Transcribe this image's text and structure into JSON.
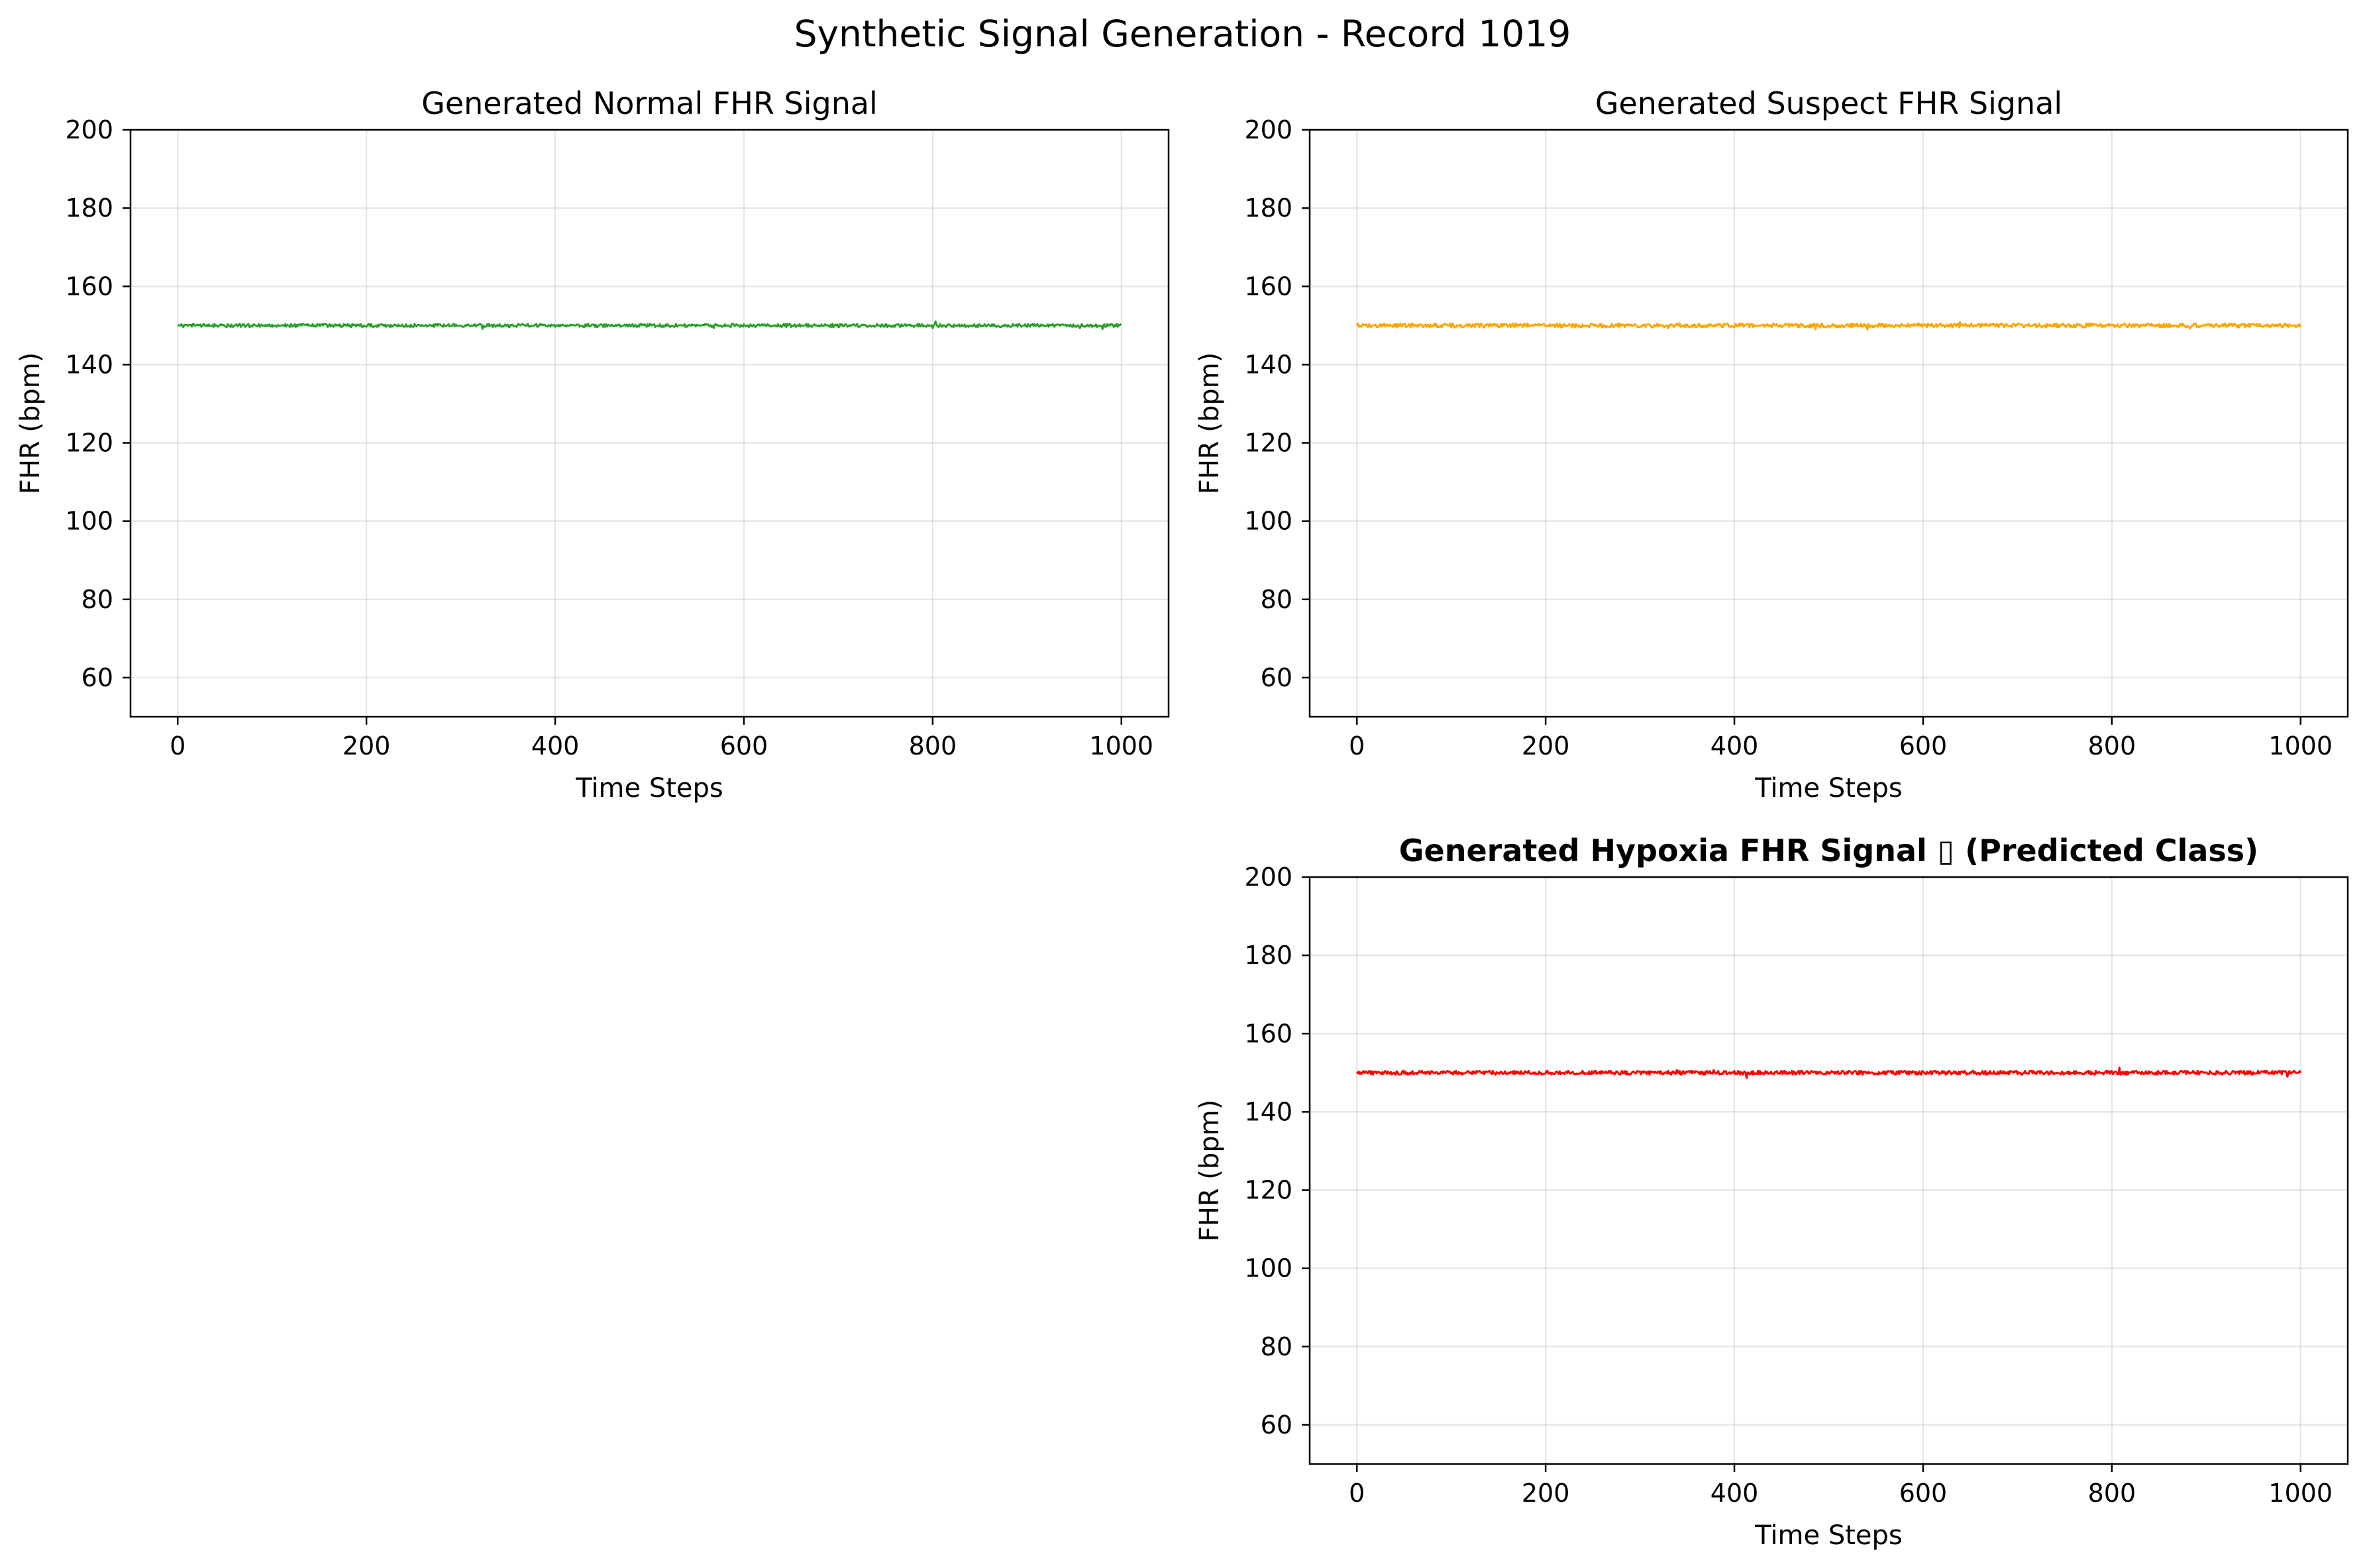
{
  "figure": {
    "suptitle": "Synthetic Signal Generation - Record 1019"
  },
  "chart_data": [
    {
      "type": "line",
      "title": "Generated Normal FHR Signal",
      "title_bold": false,
      "xlabel": "Time Steps",
      "ylabel": "FHR (bpm)",
      "xlim": [
        -50,
        1050
      ],
      "ylim": [
        50,
        200
      ],
      "xticks": [
        0,
        200,
        400,
        600,
        800,
        1000
      ],
      "yticks": [
        60,
        80,
        100,
        120,
        140,
        160,
        180,
        200
      ],
      "grid": true,
      "series": [
        {
          "color": "#2ca02c",
          "x_range": [
            0,
            1000
          ],
          "baseline": 150.0,
          "noise_amplitude": 0.4
        }
      ]
    },
    {
      "type": "line",
      "title": "Generated Suspect FHR Signal",
      "title_bold": false,
      "xlabel": "Time Steps",
      "ylabel": "FHR (bpm)",
      "xlim": [
        -50,
        1050
      ],
      "ylim": [
        50,
        200
      ],
      "xticks": [
        0,
        200,
        400,
        600,
        800,
        1000
      ],
      "yticks": [
        60,
        80,
        100,
        120,
        140,
        160,
        180,
        200
      ],
      "grid": true,
      "series": [
        {
          "color": "#ffa500",
          "x_range": [
            0,
            1000
          ],
          "baseline": 150.0,
          "noise_amplitude": 0.5
        }
      ]
    },
    {
      "type": "line",
      "title": "Generated Hypoxia FHR Signal ▯ (Predicted Class)",
      "title_bold": true,
      "xlabel": "Time Steps",
      "ylabel": "FHR (bpm)",
      "xlim": [
        -50,
        1050
      ],
      "ylim": [
        50,
        200
      ],
      "xticks": [
        0,
        200,
        400,
        600,
        800,
        1000
      ],
      "yticks": [
        60,
        80,
        100,
        120,
        140,
        160,
        180,
        200
      ],
      "grid": true,
      "series": [
        {
          "color": "#ff0000",
          "x_range": [
            0,
            1000
          ],
          "baseline": 150.0,
          "noise_amplitude": 0.5
        }
      ]
    }
  ]
}
